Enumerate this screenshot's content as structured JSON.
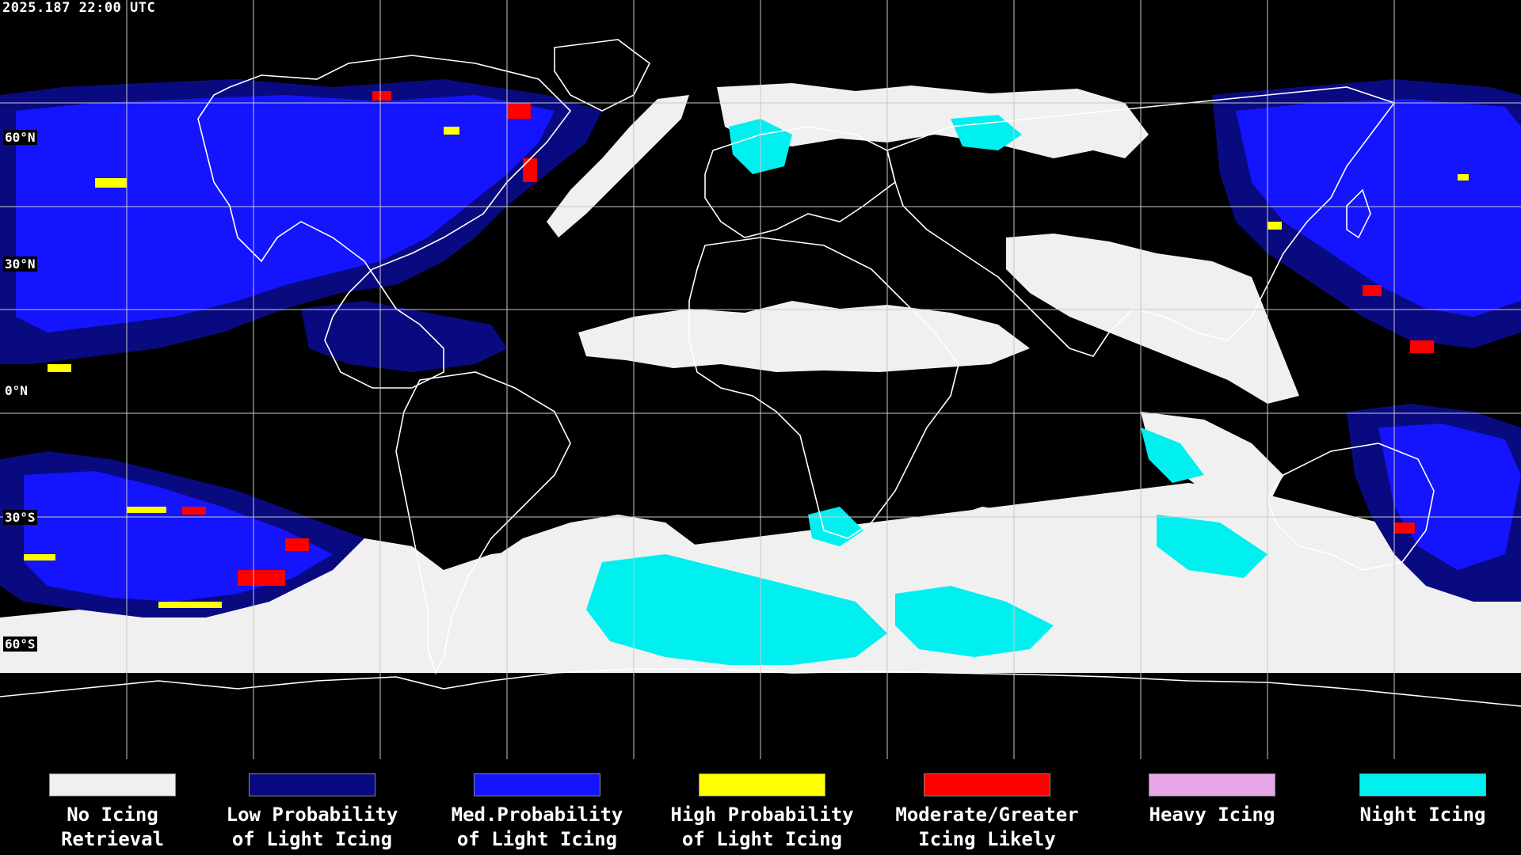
{
  "header": {
    "timestamp": "2025.187 22:00 UTC"
  },
  "latitude_labels": [
    "60°N",
    "30°N",
    "0°N",
    "30°S",
    "60°S"
  ],
  "colors": {
    "background": "#000000",
    "coastline": "#ffffff",
    "grid": "#ffffff",
    "no_icing": "#f0f0f0",
    "low_prob": "#0a0a80",
    "med_prob": "#1414ff",
    "high_prob": "#ffff00",
    "moderate": "#ff0000",
    "heavy": "#e8a8e8",
    "night": "#00f0f0"
  },
  "legend": [
    {
      "label": "No Icing\nRetrieval",
      "color": "#f0f0f0"
    },
    {
      "label": "Low Probability\nof Light Icing",
      "color": "#0a0a80"
    },
    {
      "label": "Med.Probability\nof Light Icing",
      "color": "#1414ff"
    },
    {
      "label": "High Probability\nof Light Icing",
      "color": "#ffff00"
    },
    {
      "label": "Moderate/Greater\nIcing Likely",
      "color": "#ff0000"
    },
    {
      "label": "Heavy Icing",
      "color": "#e8a8e8"
    },
    {
      "label": "Night Icing",
      "color": "#00f0f0"
    }
  ]
}
